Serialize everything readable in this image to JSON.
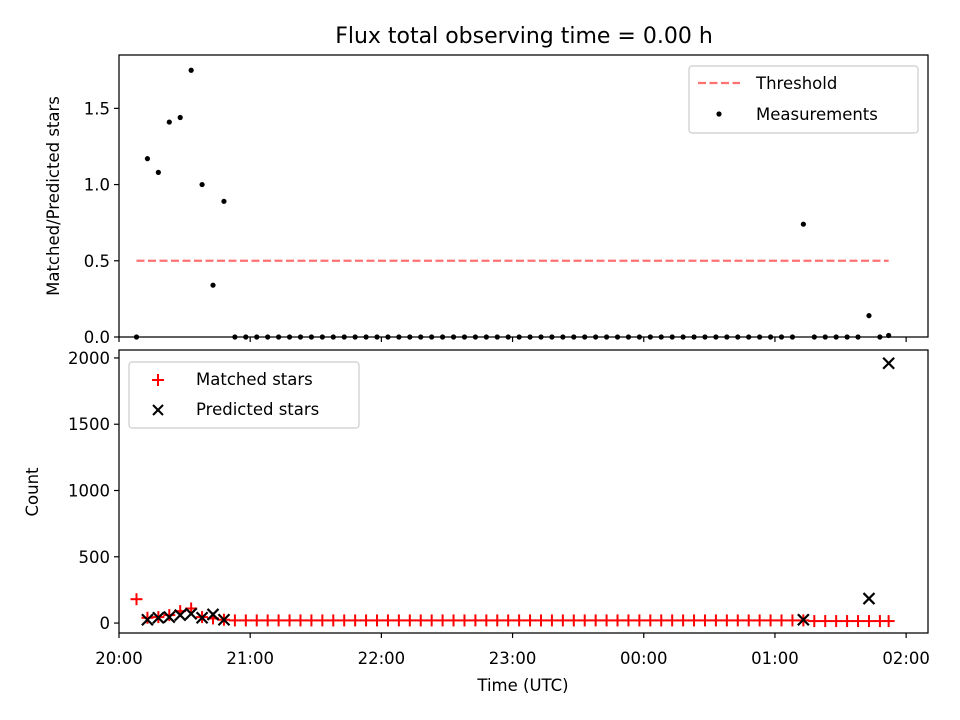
{
  "chart_data": [
    {
      "type": "scatter",
      "title": "Flux total observing time = 0.00 h",
      "xlabel": "",
      "ylabel": "Matched/Predicted stars",
      "ylim": [
        0,
        1.85
      ],
      "yticks": [
        0,
        0.5,
        1.0,
        1.5
      ],
      "ytick_labels": [
        "0.0",
        "0.5",
        "1.0",
        "1.5"
      ],
      "xlim": [
        "20:00",
        "02:10"
      ],
      "legend_position": "upper right",
      "threshold": {
        "name": "Threshold",
        "value": 0.5,
        "x": [
          "20:08",
          "01:52"
        ],
        "color": "#ff7272",
        "style": "dashed"
      },
      "series": [
        {
          "name": "Measurements",
          "color": "#000000",
          "marker": "dot",
          "x": [
            "20:08",
            "20:13",
            "20:18",
            "20:23",
            "20:28",
            "20:33",
            "20:38",
            "20:43",
            "20:48",
            "20:53",
            "20:58",
            "21:03",
            "21:08",
            "21:13",
            "21:18",
            "21:23",
            "21:28",
            "21:33",
            "21:38",
            "21:43",
            "21:48",
            "21:53",
            "21:58",
            "22:03",
            "22:08",
            "22:13",
            "22:18",
            "22:23",
            "22:28",
            "22:33",
            "22:38",
            "22:43",
            "22:48",
            "22:53",
            "22:58",
            "23:03",
            "23:08",
            "23:13",
            "23:18",
            "23:23",
            "23:28",
            "23:33",
            "23:38",
            "23:43",
            "23:48",
            "23:53",
            "23:58",
            "00:03",
            "00:08",
            "00:13",
            "00:18",
            "00:23",
            "00:28",
            "00:33",
            "00:38",
            "00:43",
            "00:48",
            "00:53",
            "00:58",
            "01:03",
            "01:08",
            "01:13",
            "01:18",
            "01:23",
            "01:28",
            "01:33",
            "01:38",
            "01:43",
            "01:48",
            "01:52"
          ],
          "y": [
            0.0,
            1.17,
            1.08,
            1.41,
            1.44,
            1.75,
            1.0,
            0.34,
            0.89,
            0.0,
            0.0,
            0.0,
            0.0,
            0.0,
            0.0,
            0.0,
            0.0,
            0.0,
            0.0,
            0.0,
            0.0,
            0.0,
            0.0,
            0.0,
            0.0,
            0.0,
            0.0,
            0.0,
            0.0,
            0.0,
            0.0,
            0.0,
            0.0,
            0.0,
            0.0,
            0.0,
            0.0,
            0.0,
            0.0,
            0.0,
            0.0,
            0.0,
            0.0,
            0.0,
            0.0,
            0.0,
            0.0,
            0.0,
            0.0,
            0.0,
            0.0,
            0.0,
            0.0,
            0.0,
            0.0,
            0.0,
            0.0,
            0.0,
            0.0,
            0.0,
            0.0,
            0.74,
            0.0,
            0.0,
            0.0,
            0.0,
            0.0,
            0.14,
            0.0,
            0.01
          ]
        }
      ]
    },
    {
      "type": "scatter",
      "title": "",
      "xlabel": "Time (UTC)",
      "ylabel": "Count",
      "ylim": [
        -75,
        2060
      ],
      "yticks": [
        0,
        500,
        1000,
        1500,
        2000
      ],
      "ytick_labels": [
        "0",
        "500",
        "1000",
        "1500",
        "2000"
      ],
      "xlim": [
        "20:00",
        "02:10"
      ],
      "xticks": [
        "20:00",
        "21:00",
        "22:00",
        "23:00",
        "00:00",
        "01:00",
        "02:00"
      ],
      "legend_position": "upper left",
      "series": [
        {
          "name": "Matched stars",
          "color": "#ff0000",
          "marker": "plus",
          "x": [
            "20:08",
            "20:13",
            "20:18",
            "20:23",
            "20:28",
            "20:33",
            "20:38",
            "20:43",
            "20:48",
            "20:53",
            "20:58",
            "21:03",
            "21:08",
            "21:13",
            "21:18",
            "21:23",
            "21:28",
            "21:33",
            "21:38",
            "21:43",
            "21:48",
            "21:53",
            "21:58",
            "22:03",
            "22:08",
            "22:13",
            "22:18",
            "22:23",
            "22:28",
            "22:33",
            "22:38",
            "22:43",
            "22:48",
            "22:53",
            "22:58",
            "23:03",
            "23:08",
            "23:13",
            "23:18",
            "23:23",
            "23:28",
            "23:33",
            "23:38",
            "23:43",
            "23:48",
            "23:53",
            "23:58",
            "00:03",
            "00:08",
            "00:13",
            "00:18",
            "00:23",
            "00:28",
            "00:33",
            "00:38",
            "00:43",
            "00:48",
            "00:53",
            "00:58",
            "01:03",
            "01:08",
            "01:13",
            "01:18",
            "01:23",
            "01:28",
            "01:33",
            "01:38",
            "01:43",
            "01:48",
            "01:52"
          ],
          "y": [
            180,
            40,
            45,
            60,
            90,
            110,
            45,
            35,
            25,
            20,
            20,
            20,
            20,
            20,
            20,
            20,
            20,
            20,
            20,
            20,
            20,
            20,
            20,
            20,
            20,
            20,
            20,
            20,
            20,
            20,
            20,
            20,
            20,
            20,
            20,
            20,
            20,
            20,
            20,
            20,
            20,
            20,
            20,
            20,
            20,
            20,
            20,
            20,
            20,
            20,
            20,
            20,
            20,
            20,
            20,
            20,
            20,
            20,
            20,
            20,
            20,
            20,
            15,
            15,
            15,
            15,
            15,
            15,
            15,
            15
          ]
        },
        {
          "name": "Predicted stars",
          "color": "#000000",
          "marker": "x",
          "x": [
            "20:13",
            "20:18",
            "20:23",
            "20:28",
            "20:33",
            "20:38",
            "20:43",
            "20:48",
            "01:13",
            "01:43",
            "01:52"
          ],
          "y": [
            25,
            40,
            45,
            60,
            70,
            40,
            65,
            25,
            25,
            185,
            1960
          ]
        }
      ]
    }
  ]
}
